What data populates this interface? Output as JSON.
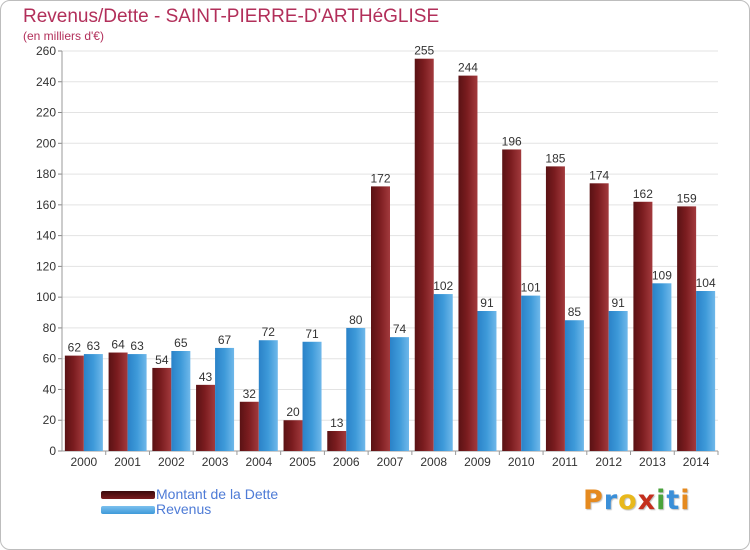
{
  "colors": {
    "dette": "#7a1c1f",
    "revenus": "#3e9ad9",
    "title": "#b22f5a",
    "legend_text": "#4e7bd6"
  },
  "chart_data": {
    "type": "bar",
    "title": "Revenus/Dette - SAINT-PIERRE-D'ARTHéGLISE",
    "subtitle": "(en milliers d'€)",
    "categories": [
      "2000",
      "2001",
      "2002",
      "2003",
      "2004",
      "2005",
      "2006",
      "2007",
      "2008",
      "2009",
      "2010",
      "2011",
      "2012",
      "2013",
      "2014"
    ],
    "series": [
      {
        "name": "Montant de la Dette",
        "values": [
          62,
          64,
          54,
          43,
          32,
          20,
          13,
          172,
          255,
          244,
          196,
          185,
          174,
          162,
          159
        ]
      },
      {
        "name": "Revenus",
        "values": [
          63,
          63,
          65,
          67,
          72,
          71,
          80,
          74,
          102,
          91,
          101,
          85,
          91,
          109,
          104
        ]
      }
    ],
    "ylim": [
      0,
      260
    ],
    "yticks": [
      0,
      20,
      40,
      60,
      80,
      100,
      120,
      140,
      160,
      180,
      200,
      220,
      240,
      260
    ],
    "grid": true,
    "legend_position": "bottom-left"
  },
  "brand": {
    "letters": [
      "P",
      "r",
      "o",
      "x",
      "i",
      "t",
      "i"
    ],
    "colors": [
      "#e58a1f",
      "#3a8fd8",
      "#e8b81c",
      "#c42f1d",
      "#4aa33c",
      "#3a8fd8",
      "#e58a1f"
    ]
  }
}
